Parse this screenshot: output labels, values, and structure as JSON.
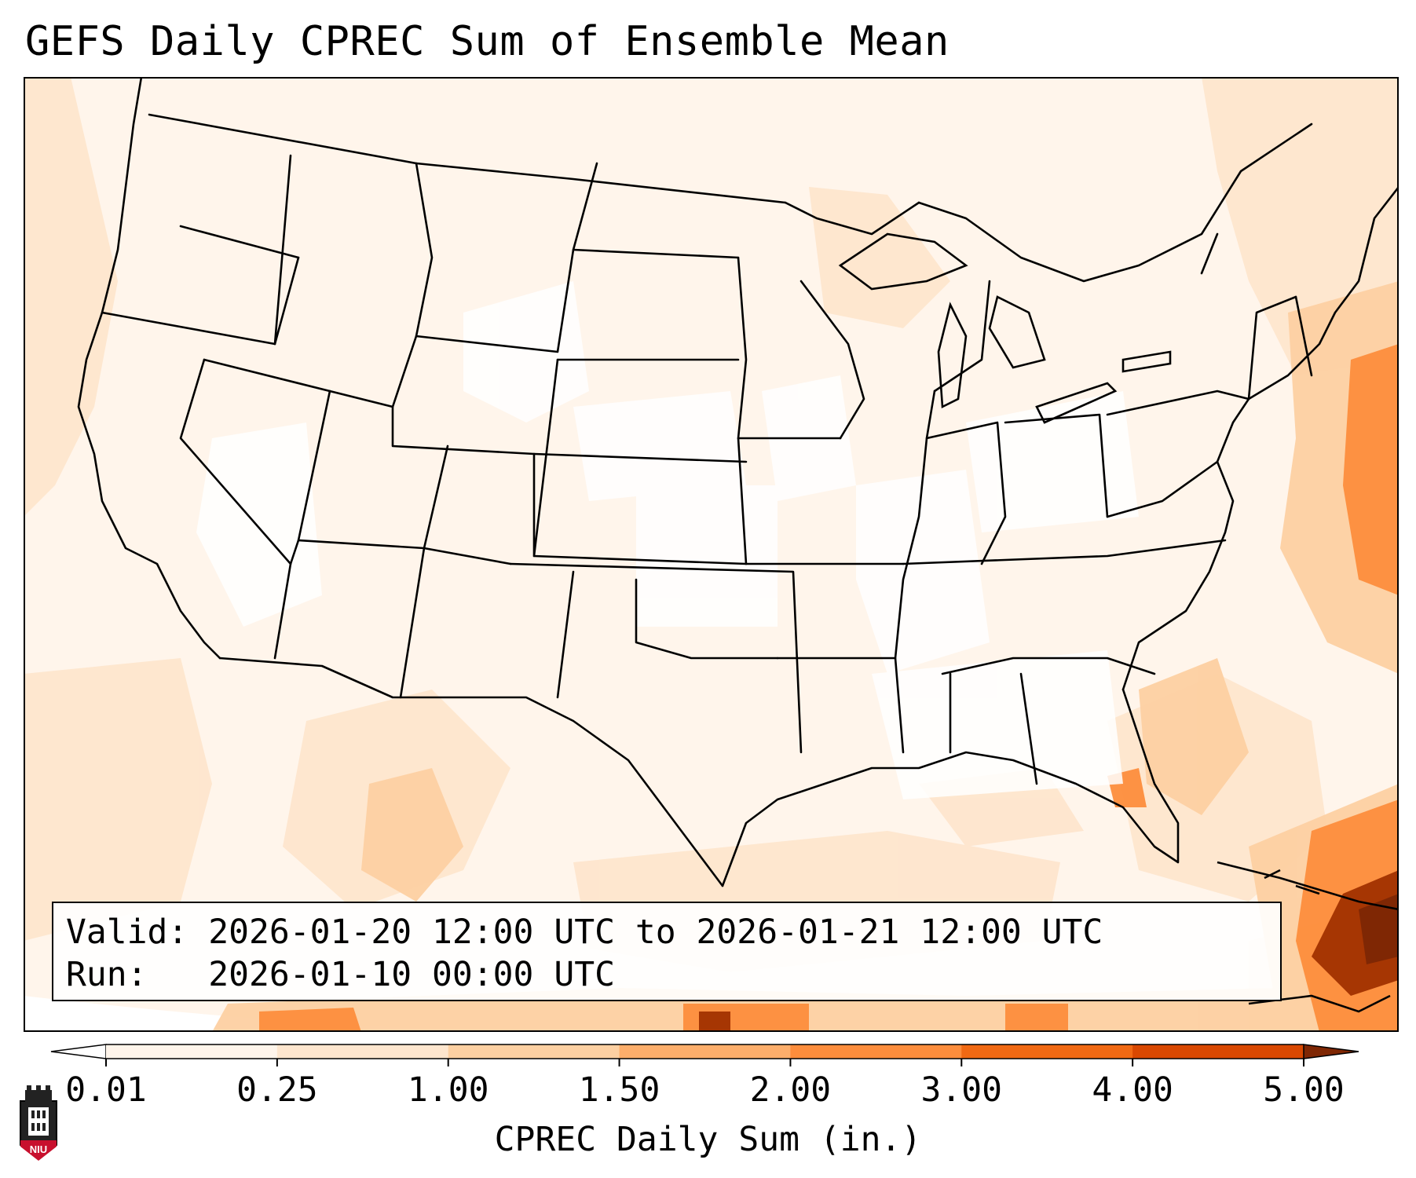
{
  "title": "GEFS Daily CPREC Sum of Ensemble Mean",
  "info": {
    "valid_line": "Valid: 2026-01-20 12:00 UTC to 2026-01-21 12:00 UTC",
    "run_line": "Run:   2026-01-10 00:00 UTC"
  },
  "colorbar": {
    "label": "CPREC Daily Sum (in.)",
    "ticks": [
      "0.01",
      "0.25",
      "1.00",
      "1.50",
      "2.00",
      "3.00",
      "4.00",
      "5.00"
    ],
    "colors": [
      "#fff5eb",
      "#fee6ce",
      "#fdd0a2",
      "#fdae6b",
      "#fd8d3c",
      "#f16913",
      "#d94801",
      "#a63603"
    ],
    "under_color": "#ffffff",
    "over_color": "#7f2704"
  },
  "map": {
    "field": "CPREC",
    "extent": "Contiguous United States",
    "background_fill": "#fff5eb",
    "low_fill": "#fee6ce",
    "medium_fill": "#fdd0a2",
    "heavy_fill": "#fd8d3c",
    "extreme_fill": "#a63603"
  },
  "logo": {
    "text": "NIU"
  }
}
